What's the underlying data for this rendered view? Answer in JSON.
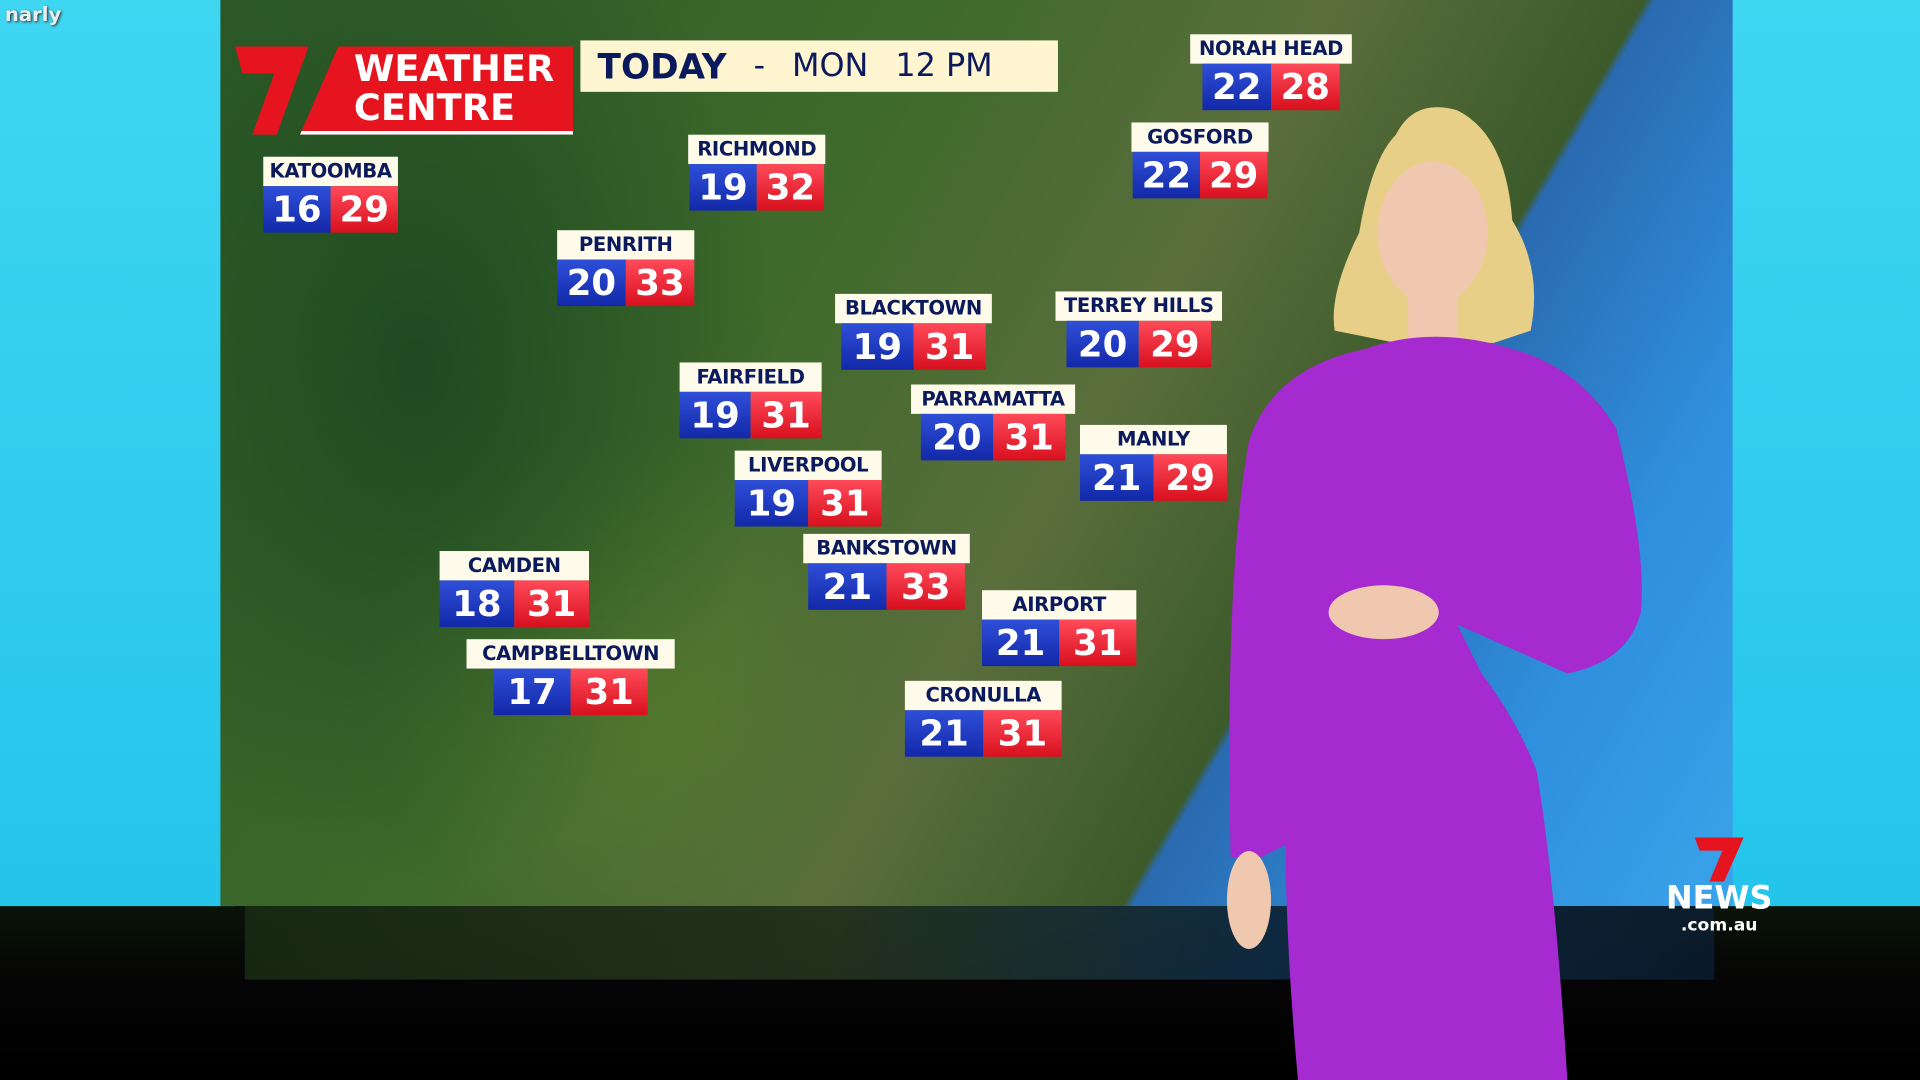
{
  "watermark": "narly",
  "brand": {
    "logo_text": "WEATHER CENTRE",
    "line1": "WEATHER",
    "line2": "CENTRE",
    "accent": "#e5141f"
  },
  "header": {
    "today": "TODAY",
    "separator": "-",
    "day": "MON",
    "time": "12 PM"
  },
  "colors": {
    "min_temp": "#1f3ac4",
    "max_temp": "#e5141f",
    "label_bg": "#fffbea"
  },
  "stations": [
    {
      "name": "KATOOMBA",
      "min": "16",
      "max": "29"
    },
    {
      "name": "RICHMOND",
      "min": "19",
      "max": "32"
    },
    {
      "name": "PENRITH",
      "min": "20",
      "max": "33"
    },
    {
      "name": "BLACKTOWN",
      "min": "19",
      "max": "31"
    },
    {
      "name": "TERREY HILLS",
      "min": "20",
      "max": "29"
    },
    {
      "name": "FAIRFIELD",
      "min": "19",
      "max": "31"
    },
    {
      "name": "PARRAMATTA",
      "min": "20",
      "max": "31"
    },
    {
      "name": "MANLY",
      "min": "21",
      "max": "29"
    },
    {
      "name": "LIVERPOOL",
      "min": "19",
      "max": "31"
    },
    {
      "name": "BANKSTOWN",
      "min": "21",
      "max": "33"
    },
    {
      "name": "CAMDEN",
      "min": "18",
      "max": "31"
    },
    {
      "name": "AIRPORT",
      "min": "21",
      "max": "31"
    },
    {
      "name": "CAMPBELLTOWN",
      "min": "17",
      "max": "31"
    },
    {
      "name": "CRONULLA",
      "min": "21",
      "max": "31"
    },
    {
      "name": "NORAH HEAD",
      "min": "22",
      "max": "28"
    },
    {
      "name": "GOSFORD",
      "min": "22",
      "max": "29"
    }
  ],
  "channel_logo": {
    "name": "7NEWS",
    "main": "NEWS",
    "domain": ".com.au"
  }
}
